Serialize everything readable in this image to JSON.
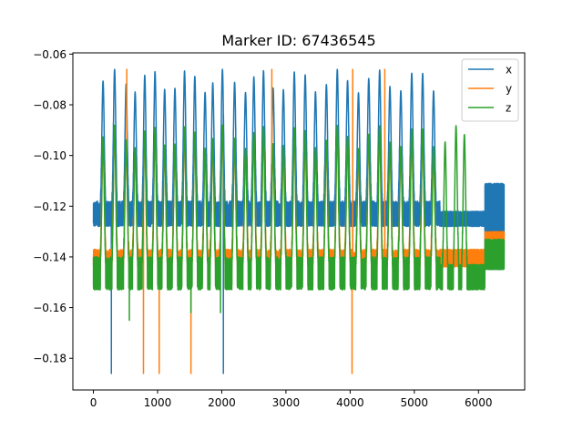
{
  "chart_data": {
    "type": "line",
    "title": "Marker ID: 67436545",
    "xlabel": "",
    "ylabel": "",
    "xlim": [
      -320,
      6720
    ],
    "ylim": [
      -0.1925,
      -0.0595
    ],
    "x_ticks": [
      0,
      1000,
      2000,
      3000,
      4000,
      5000,
      6000
    ],
    "x_tick_labels": [
      "0",
      "1000",
      "2000",
      "3000",
      "4000",
      "5000",
      "6000"
    ],
    "y_ticks": [
      -0.06,
      -0.08,
      -0.1,
      -0.12,
      -0.14,
      -0.16,
      -0.18
    ],
    "y_tick_labels": [
      "−0.06",
      "−0.08",
      "−0.10",
      "−0.12",
      "−0.14",
      "−0.16",
      "−0.18"
    ],
    "grid": false,
    "legend_position": "top-right",
    "n_points": 6400,
    "series": [
      {
        "name": "x",
        "color": "#1f77b4",
        "baseline": -0.124,
        "noise_low": -0.128,
        "noise_high": -0.118,
        "peak_value": -0.066,
        "peak_positions": [
          150,
          330,
          510,
          650,
          800,
          960,
          1110,
          1270,
          1420,
          1580,
          1740,
          1860,
          2010,
          2200,
          2370,
          2500,
          2650,
          2800,
          2960,
          3130,
          3300,
          3460,
          3630,
          3800,
          3960,
          4130,
          4290,
          4460,
          4620,
          4790,
          4960,
          5130,
          5300
        ],
        "spikes": [
          [
            280,
            -0.186
          ],
          [
            2025,
            -0.186
          ]
        ],
        "segments": [
          {
            "from": 5400,
            "to": 6100,
            "low": -0.128,
            "high": -0.122
          },
          {
            "from": 6100,
            "to": 6400,
            "low": -0.145,
            "high": -0.111
          }
        ]
      },
      {
        "name": "y",
        "color": "#ff7f0e",
        "baseline": -0.141,
        "noise_low": -0.144,
        "noise_high": -0.137,
        "peak_value": -0.092,
        "peak_positions": [
          150,
          330,
          510,
          650,
          800,
          960,
          1110,
          1270,
          1420,
          1580,
          1740,
          1860,
          2010,
          2200,
          2370,
          2500,
          2650,
          2800,
          2960,
          3130,
          3300,
          3460,
          3630,
          3800,
          3960,
          4130,
          4290,
          4460,
          4620,
          4790,
          4960,
          5130,
          5300
        ],
        "spikes": [
          [
            520,
            -0.066
          ],
          [
            2780,
            -0.066
          ],
          [
            4040,
            -0.066
          ],
          [
            4540,
            -0.066
          ],
          [
            780,
            -0.186
          ],
          [
            1025,
            -0.186
          ],
          [
            1520,
            -0.186
          ],
          [
            4030,
            -0.186
          ]
        ],
        "segments": [
          {
            "from": 5400,
            "to": 6100,
            "low": -0.144,
            "high": -0.137
          },
          {
            "from": 6100,
            "to": 6400,
            "low": -0.14,
            "high": -0.13
          }
        ]
      },
      {
        "name": "z",
        "color": "#2ca02c",
        "baseline": -0.146,
        "noise_low": -0.153,
        "noise_high": -0.14,
        "peak_value": -0.088,
        "peak_positions": [
          150,
          330,
          510,
          650,
          800,
          960,
          1110,
          1270,
          1420,
          1580,
          1740,
          1860,
          2010,
          2200,
          2370,
          2500,
          2650,
          2800,
          2960,
          3130,
          3300,
          3460,
          3630,
          3800,
          3960,
          4130,
          4290,
          4460,
          4620,
          4790,
          4960,
          5130,
          5300,
          5480,
          5650,
          5780
        ],
        "spikes": [
          [
            560,
            -0.165
          ],
          [
            1520,
            -0.162
          ],
          [
            1980,
            -0.162
          ]
        ],
        "segments": [
          {
            "from": 5400,
            "to": 6100,
            "low": -0.153,
            "high": -0.143
          },
          {
            "from": 6100,
            "to": 6400,
            "low": -0.145,
            "high": -0.133
          }
        ]
      }
    ]
  }
}
